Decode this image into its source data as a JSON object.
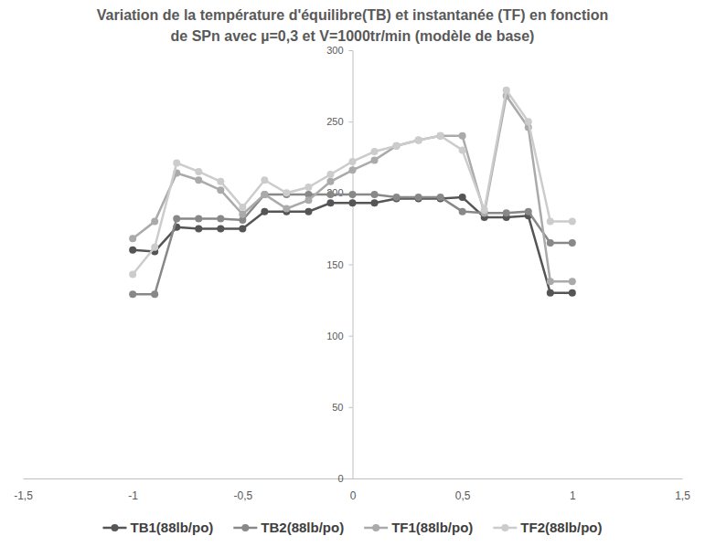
{
  "chart_data": {
    "type": "line",
    "title": "Variation de la température d'équilibre(TB) et instantanée (TF) en fonction de SPn   avec  µ=0,3 et V=1000tr/min (modèle de base)",
    "x": [
      -1,
      -0.9,
      -0.8,
      -0.7,
      -0.6,
      -0.5,
      -0.4,
      -0.3,
      -0.2,
      -0.1,
      0,
      0.1,
      0.2,
      0.3,
      0.4,
      0.5,
      0.6,
      0.7,
      0.8,
      0.9,
      1
    ],
    "series": [
      {
        "name": "TB1(88lb/po)",
        "color": "#555555",
        "marker": "circle",
        "values": [
          160,
          159,
          176,
          175,
          175,
          175,
          187,
          187,
          187,
          193,
          193,
          193,
          196,
          196,
          196,
          197,
          183,
          183,
          184,
          130,
          130
        ]
      },
      {
        "name": "TB2(88lb/po)",
        "color": "#888888",
        "marker": "circle",
        "values": [
          129,
          129,
          182,
          182,
          182,
          181,
          199,
          199,
          199,
          199,
          199,
          199,
          197,
          197,
          197,
          187,
          186,
          186,
          187,
          165,
          165
        ]
      },
      {
        "name": "TF1(88lb/po)",
        "color": "#aaaaaa",
        "marker": "circle",
        "values": [
          168,
          180,
          214,
          209,
          202,
          185,
          199,
          189,
          195,
          208,
          216,
          223,
          233,
          237,
          240,
          240,
          186,
          268,
          246,
          138,
          138
        ]
      },
      {
        "name": "TF2(88lb/po)",
        "color": "#cccccc",
        "marker": "circle",
        "values": [
          143,
          162,
          221,
          215,
          208,
          190,
          209,
          200,
          204,
          213,
          222,
          229,
          233,
          237,
          240,
          230,
          188,
          272,
          250,
          180,
          180
        ]
      }
    ],
    "xlim": [
      -1.5,
      1.5
    ],
    "xticks": [
      {
        "value": -1.5,
        "label": "-1,5"
      },
      -1,
      {
        "value": -0.5,
        "label": "-0,5"
      },
      0,
      {
        "value": 0.5,
        "label": "0,5"
      },
      1,
      {
        "value": 1.5,
        "label": "1,5"
      }
    ],
    "ylim": [
      0,
      300
    ],
    "yticks": [
      0,
      50,
      100,
      150,
      200,
      250,
      300
    ],
    "grid": false,
    "legend": "bottom"
  }
}
